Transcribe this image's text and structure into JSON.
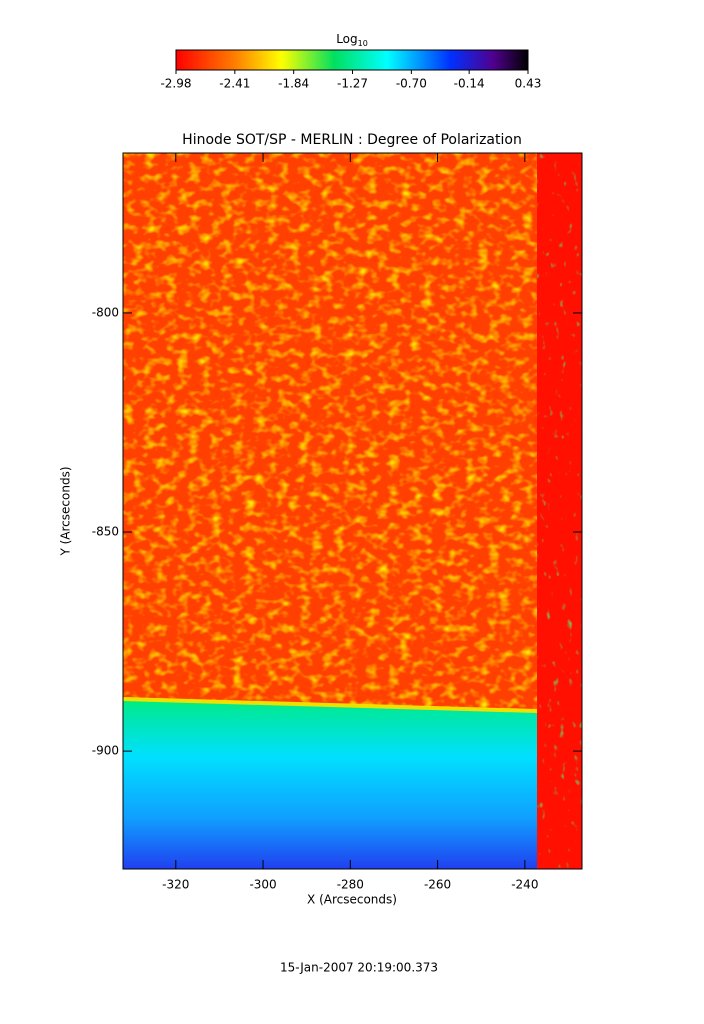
{
  "chart_data": {
    "type": "image",
    "title": "Hinode SOT/SP - MERLIN : Degree of Polarization",
    "xlabel": "X (Arcseconds)",
    "ylabel": "Y (Arcseconds)",
    "xlim": [
      -332.1,
      -226.9
    ],
    "ylim": [
      -926.9,
      -763.5
    ],
    "xticks": [
      -320,
      -300,
      -280,
      -260,
      -240
    ],
    "yticks": [
      -800,
      -850,
      -900
    ],
    "colorbar": {
      "label": "Log",
      "label_sub": "10",
      "lim": [
        -2.98,
        0.43
      ],
      "ticks": [
        -2.98,
        -2.41,
        -1.84,
        -1.27,
        {
          "value": -0.7,
          "label": "-0.70"
        },
        -0.14,
        0.43
      ]
    },
    "timestamp": "15-Jan-2007 20:19:00.373"
  }
}
